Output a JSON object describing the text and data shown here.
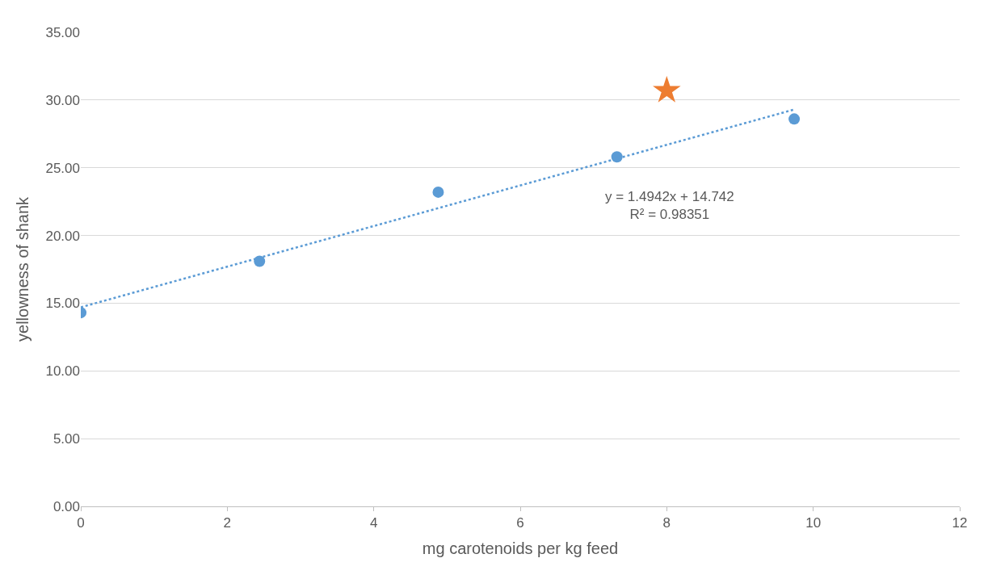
{
  "chart_data": {
    "type": "scatter",
    "xlabel": "mg carotenoids per kg feed",
    "ylabel": "yellowness of shank",
    "series": [
      {
        "color": "#5b9bd5",
        "marker": "circle",
        "x": [
          0,
          2.44,
          4.88,
          7.32,
          9.74
        ],
        "values": [
          14.3,
          18.1,
          23.2,
          25.8,
          28.6
        ]
      },
      {
        "color": "#ed7d31",
        "marker": "star",
        "x": [
          8.0
        ],
        "values": [
          30.7
        ]
      },
      {
        "type": "line",
        "color": "#5b9bd5",
        "line_style": "dotted",
        "marker": "none",
        "x": [
          0,
          9.74
        ],
        "values": [
          14.7,
          29.3
        ]
      }
    ],
    "annotations": [
      "y = 1.4942x + 14.742\nR² = 0.98351"
    ],
    "xlim": [
      0,
      12
    ],
    "xticks": [
      0,
      2,
      4,
      6,
      8,
      10,
      12
    ],
    "ylim": [
      0,
      35
    ],
    "yticks": [
      {
        "value": 0,
        "label": "0.00"
      },
      {
        "value": 5,
        "label": "5.00"
      },
      {
        "value": 10,
        "label": "10.00"
      },
      {
        "value": 15,
        "label": "15.00"
      },
      {
        "value": 20,
        "label": "20.00"
      },
      {
        "value": 25,
        "label": "25.00"
      },
      {
        "value": 30,
        "label": "30.00"
      },
      {
        "value": 35,
        "label": "35.00"
      }
    ],
    "grid": "y",
    "legend": false
  }
}
